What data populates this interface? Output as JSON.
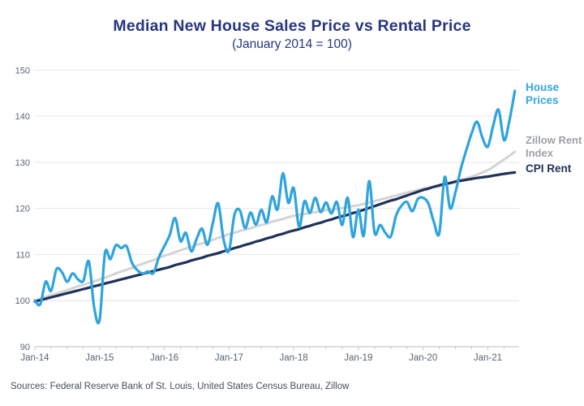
{
  "title": "Median New House Sales Price vs Rental Price",
  "subtitle": "(January 2014 = 100)",
  "source_note": "Sources: Federal Reserve Bank of St. Louis, United States Census Bureau, Zillow",
  "colors": {
    "title": "#27367f",
    "house_line": "#2fa4dc",
    "zillow_line": "#d4d4d6",
    "cpi_line": "#1f3059",
    "gridline": "#e9eaec",
    "axis": "#c6cbd1",
    "tick_label": "#5b6570",
    "background": "#ffffff"
  },
  "chart_data": {
    "type": "line",
    "title": "Median New House Sales Price vs Rental Price",
    "subtitle": "(January 2014 = 100)",
    "x_unit": "month",
    "x_start_label": "Jan-14",
    "x_tick_labels": [
      "Jan-14",
      "Jan-15",
      "Jan-16",
      "Jan-17",
      "Jan-18",
      "Jan-19",
      "Jan-20",
      "Jan-21"
    ],
    "months_span": 90,
    "y_ticks": [
      90,
      100,
      110,
      120,
      130,
      140,
      150
    ],
    "ylim": [
      90,
      150
    ],
    "grid": "horizontal",
    "legend_position": "right",
    "series": [
      {
        "name": "House Prices",
        "color": "#2fa4dc",
        "width": 3.2,
        "values": [
          100.0,
          99.2,
          104.1,
          102.1,
          106.8,
          106.2,
          104.1,
          105.9,
          104.6,
          104.3,
          108.5,
          98.5,
          95.8,
          110.3,
          109.0,
          112.0,
          111.4,
          111.8,
          108.2,
          106.6,
          105.9,
          106.3,
          106.0,
          109.4,
          111.8,
          114.2,
          117.9,
          112.9,
          114.7,
          110.7,
          113.4,
          115.6,
          112.1,
          116.8,
          121.1,
          113.2,
          110.8,
          118.6,
          119.6,
          115.7,
          119.1,
          116.5,
          119.7,
          117.0,
          122.6,
          119.8,
          127.6,
          121.2,
          124.4,
          116.0,
          121.6,
          119.0,
          122.3,
          119.2,
          121.3,
          118.9,
          121.4,
          116.4,
          122.3,
          113.8,
          119.7,
          114.1,
          125.9,
          114.7,
          116.4,
          114.7,
          113.9,
          118.5,
          120.6,
          121.4,
          119.4,
          122.0,
          122.3,
          121.0,
          117.0,
          114.6,
          126.8,
          120.0,
          123.5,
          128.6,
          132.6,
          136.3,
          138.8,
          135.3,
          133.4,
          138.0,
          141.4,
          134.8,
          139.0,
          145.5
        ]
      },
      {
        "name": "Zillow Rent Index",
        "color": "#d4d4d6",
        "width": 3.0,
        "values": [
          100.0,
          100.4,
          100.8,
          101.2,
          101.5,
          101.9,
          102.3,
          102.7,
          103.1,
          103.4,
          103.8,
          104.2,
          104.6,
          105.0,
          105.4,
          105.9,
          106.3,
          106.7,
          107.1,
          107.6,
          108.0,
          108.4,
          108.8,
          109.3,
          109.7,
          110.1,
          110.5,
          110.9,
          111.3,
          111.7,
          112.1,
          112.4,
          112.8,
          113.2,
          113.6,
          114.0,
          114.4,
          114.7,
          115.1,
          115.4,
          115.7,
          116.1,
          116.4,
          116.7,
          117.1,
          117.4,
          117.7,
          118.1,
          118.4,
          118.6,
          118.8,
          119.0,
          119.2,
          119.4,
          119.6,
          119.7,
          119.9,
          120.1,
          120.3,
          120.5,
          120.7,
          121.0,
          121.3,
          121.6,
          121.9,
          122.2,
          122.5,
          122.8,
          123.1,
          123.4,
          123.7,
          124.0,
          124.3,
          124.5,
          124.6,
          124.8,
          125.1,
          125.5,
          125.9,
          126.2,
          126.5,
          126.9,
          127.3,
          127.8,
          128.3,
          129.0,
          129.8,
          130.6,
          131.4,
          132.3
        ]
      },
      {
        "name": "CPI Rent",
        "color": "#1f3059",
        "width": 3.2,
        "values": [
          99.8,
          100.1,
          100.4,
          100.7,
          101.0,
          101.3,
          101.6,
          101.9,
          102.2,
          102.5,
          102.8,
          103.1,
          103.4,
          103.7,
          104.0,
          104.3,
          104.6,
          104.9,
          105.2,
          105.5,
          105.8,
          106.1,
          106.4,
          106.7,
          107.0,
          107.3,
          107.7,
          108.0,
          108.3,
          108.7,
          109.0,
          109.3,
          109.7,
          110.0,
          110.3,
          110.7,
          111.0,
          111.4,
          111.7,
          112.1,
          112.4,
          112.8,
          113.1,
          113.5,
          113.8,
          114.2,
          114.5,
          114.9,
          115.2,
          115.5,
          115.9,
          116.2,
          116.6,
          116.9,
          117.3,
          117.6,
          118.0,
          118.3,
          118.6,
          119.0,
          119.3,
          119.7,
          120.1,
          120.5,
          120.9,
          121.3,
          121.7,
          122.0,
          122.4,
          122.8,
          123.2,
          123.6,
          124.0,
          124.3,
          124.7,
          125.0,
          125.3,
          125.5,
          125.8,
          126.0,
          126.2,
          126.4,
          126.6,
          126.75,
          126.9,
          127.1,
          127.3,
          127.5,
          127.65,
          127.8
        ]
      }
    ]
  },
  "legend": {
    "house": "House Prices",
    "zillow": "Zillow Rent Index",
    "cpi": "CPI Rent"
  }
}
